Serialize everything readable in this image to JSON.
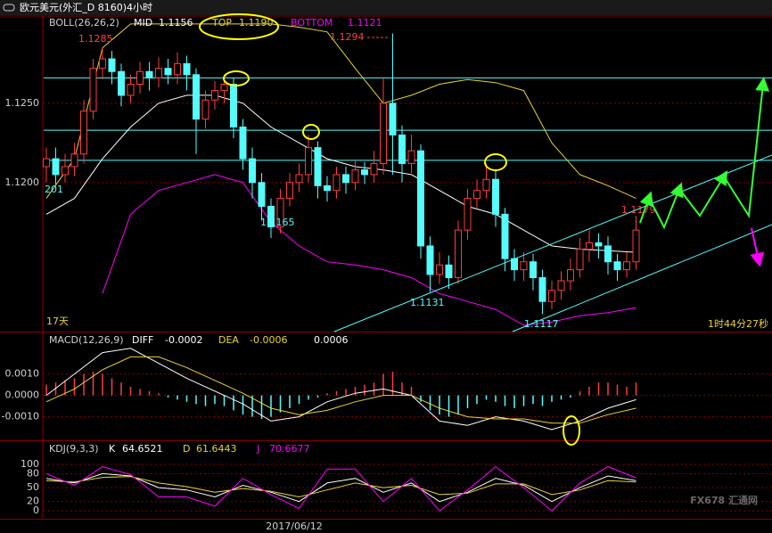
{
  "header": {
    "title": "欧元美元(外汇_D 8160)4小时"
  },
  "chart_data": [
    {
      "type": "candlestick",
      "title": "BOLL(26,26,2)",
      "open": [
        1.121,
        1.1215,
        1.1205,
        1.121,
        1.1218,
        1.1245,
        1.1272,
        1.1278,
        1.127,
        1.1255,
        1.1262,
        1.127,
        1.1266,
        1.1272,
        1.1268,
        1.1275,
        1.1268,
        1.124,
        1.1252,
        1.1258,
        1.1262,
        1.1235,
        1.1215,
        1.12,
        1.1185,
        1.1172,
        1.119,
        1.12,
        1.1205,
        1.1222,
        1.1198,
        1.1195,
        1.1205,
        1.12,
        1.1208,
        1.1205,
        1.1212,
        1.125,
        1.123,
        1.1212,
        1.122,
        1.116,
        1.1142,
        1.1148,
        1.114,
        1.117,
        1.119,
        1.1195,
        1.1202,
        1.118,
        1.1152,
        1.1145,
        1.115,
        1.114,
        1.1125,
        1.1132,
        1.1138,
        1.1145,
        1.1158,
        1.1162,
        1.116,
        1.115,
        1.1145,
        1.115
      ],
      "high": [
        1.1222,
        1.1222,
        1.1218,
        1.1225,
        1.1252,
        1.1278,
        1.1285,
        1.1283,
        1.1275,
        1.1268,
        1.1276,
        1.1276,
        1.1279,
        1.1278,
        1.1282,
        1.128,
        1.1272,
        1.1258,
        1.1264,
        1.1268,
        1.1266,
        1.124,
        1.1222,
        1.1206,
        1.119,
        1.1196,
        1.1206,
        1.1212,
        1.123,
        1.1226,
        1.1204,
        1.121,
        1.121,
        1.1214,
        1.1213,
        1.122,
        1.1266,
        1.1294,
        1.1236,
        1.123,
        1.1224,
        1.1166,
        1.1156,
        1.1154,
        1.1176,
        1.1196,
        1.1202,
        1.1212,
        1.1208,
        1.1184,
        1.1158,
        1.1156,
        1.1155,
        1.1145,
        1.1138,
        1.1144,
        1.1152,
        1.1165,
        1.117,
        1.1168,
        1.1166,
        1.1155,
        1.1156,
        1.1179
      ],
      "low": [
        1.12,
        1.1198,
        1.12,
        1.1204,
        1.1212,
        1.124,
        1.1265,
        1.1262,
        1.1248,
        1.125,
        1.1256,
        1.1258,
        1.126,
        1.1262,
        1.1262,
        1.1258,
        1.1218,
        1.1234,
        1.1246,
        1.125,
        1.1228,
        1.1208,
        1.119,
        1.1176,
        1.1165,
        1.1168,
        1.1185,
        1.1194,
        1.12,
        1.119,
        1.1188,
        1.119,
        1.1193,
        1.1195,
        1.1199,
        1.12,
        1.1205,
        1.1205,
        1.12,
        1.1206,
        1.1152,
        1.1131,
        1.1136,
        1.1133,
        1.1136,
        1.1164,
        1.1184,
        1.119,
        1.1172,
        1.1144,
        1.1138,
        1.1138,
        1.1132,
        1.1117,
        1.112,
        1.1126,
        1.1132,
        1.114,
        1.115,
        1.1152,
        1.1142,
        1.1138,
        1.114,
        1.1145
      ],
      "close": [
        1.1215,
        1.1205,
        1.121,
        1.1218,
        1.1245,
        1.1272,
        1.1278,
        1.127,
        1.1255,
        1.1262,
        1.127,
        1.1266,
        1.1272,
        1.1268,
        1.1275,
        1.1268,
        1.124,
        1.1252,
        1.1258,
        1.1262,
        1.1235,
        1.1215,
        1.12,
        1.1185,
        1.1172,
        1.119,
        1.12,
        1.1205,
        1.1222,
        1.1198,
        1.1195,
        1.1205,
        1.12,
        1.1208,
        1.1205,
        1.1212,
        1.125,
        1.123,
        1.1212,
        1.122,
        1.116,
        1.1142,
        1.1148,
        1.114,
        1.117,
        1.119,
        1.1195,
        1.1202,
        1.118,
        1.1152,
        1.1145,
        1.115,
        1.114,
        1.1125,
        1.1132,
        1.1138,
        1.1145,
        1.1158,
        1.1162,
        1.116,
        1.115,
        1.1145,
        1.115,
        1.117
      ],
      "up_color": "#ff3c3c",
      "down_color": "#54fcfc",
      "indicators": [
        {
          "name": "MID",
          "label": "1.1156",
          "color": "#ffffff",
          "values": [
            1.118,
            1.119,
            1.1215,
            1.1235,
            1.125,
            1.1255,
            1.1255,
            1.125,
            1.1235,
            1.1225,
            1.1215,
            1.121,
            1.1208,
            1.1205,
            1.1195,
            1.1185,
            1.118,
            1.117,
            1.116,
            1.1158,
            1.1157,
            1.1156
          ]
        },
        {
          "name": "TOP",
          "label": "1.1190",
          "color": "#e6d23c",
          "values": [
            1.119,
            1.1215,
            1.1285,
            1.13,
            1.13,
            1.13,
            1.13,
            1.13,
            1.13,
            1.1298,
            1.1295,
            1.1272,
            1.125,
            1.1255,
            1.1262,
            1.1265,
            1.1263,
            1.1258,
            1.1225,
            1.1205,
            1.1198,
            1.119
          ]
        },
        {
          "name": "BOTTOM",
          "label": "1.1121",
          "color": "#ff00ff",
          "values": [
            null,
            null,
            1.113,
            1.118,
            1.1195,
            1.12,
            1.1205,
            1.12,
            1.1175,
            1.116,
            1.115,
            1.1148,
            1.1145,
            1.114,
            1.113,
            1.1125,
            1.112,
            1.111,
            1.1112,
            1.1116,
            1.1118,
            1.1121
          ]
        }
      ],
      "ylim": [
        1.1106,
        1.1305
      ],
      "yticks": [
        {
          "value": 1.125,
          "label": "1.1250"
        },
        {
          "value": 1.12,
          "label": "1.1200"
        }
      ],
      "grid": true,
      "hlines": [
        1.1266,
        1.1233,
        1.1214
      ],
      "hline_color": "#54fcfc",
      "annotations": [
        "1.1285",
        "1.1294",
        "1.1165",
        "1.1131",
        "1.1117",
        "1.1179"
      ],
      "left_note": "201",
      "period_note": "17天",
      "timer": "1时44分27秒"
    },
    {
      "type": "macd",
      "title": "MACD(12,26,9)",
      "series": [
        {
          "name": "DIFF",
          "label": "-0.0002",
          "color": "#ffffff",
          "values": [
            0.0,
            0.001,
            0.002,
            0.0022,
            0.0015,
            0.0008,
            0.0002,
            -0.0004,
            -0.0012,
            -0.001,
            -0.0003,
            0.0001,
            0.0003,
            0.0,
            -0.0012,
            -0.0014,
            -0.001,
            -0.0012,
            -0.0016,
            -0.0012,
            -0.0006,
            -0.0002
          ]
        },
        {
          "name": "DEA",
          "label": "-0.0006",
          "color": "#e6d23c",
          "values": [
            -0.0003,
            0.0003,
            0.0012,
            0.0018,
            0.0018,
            0.0013,
            0.0007,
            0.0001,
            -0.0006,
            -0.0009,
            -0.0007,
            -0.0003,
            0.0,
            0.0,
            -0.0006,
            -0.001,
            -0.0011,
            -0.0011,
            -0.0013,
            -0.0013,
            -0.0009,
            -0.0006
          ]
        }
      ],
      "histogram": {
        "label": "0.0006",
        "values": [
          0.0005,
          0.0006,
          0.0007,
          0.0008,
          0.001,
          0.0011,
          0.001,
          0.0008,
          0.0006,
          0.0004,
          0.0003,
          0.0002,
          0.0001,
          -0.0001,
          -0.0002,
          -0.0003,
          -0.0004,
          -0.0005,
          -0.0004,
          -0.0005,
          -0.0007,
          -0.0009,
          -0.001,
          -0.0011,
          -0.001,
          -0.0008,
          -0.0006,
          -0.0004,
          -0.0002,
          -0.0001,
          0.0001,
          0.0002,
          0.0003,
          0.0004,
          0.0005,
          0.0006,
          0.001,
          0.0011,
          0.0006,
          0.0004,
          -0.0003,
          -0.0007,
          -0.0009,
          -0.001,
          -0.0009,
          -0.0006,
          -0.0004,
          -0.0002,
          -0.0003,
          -0.0005,
          -0.0006,
          -0.0005,
          -0.0004,
          -0.0005,
          -0.0003,
          -0.0002,
          -0.0001,
          0.0002,
          0.0004,
          0.0006,
          0.0006,
          0.0005,
          0.0004,
          0.0006
        ]
      },
      "ylim": [
        -0.0021,
        0.0029
      ],
      "yticks": [
        {
          "value": 0.001,
          "label": "0.0010"
        },
        {
          "value": 0,
          "label": "0.0000"
        },
        {
          "value": -0.001,
          "label": "-0.0010"
        }
      ],
      "grid": true
    },
    {
      "type": "kdj",
      "title": "KDJ(9,3,3)",
      "series": [
        {
          "name": "K",
          "label": "64.6521",
          "color": "#ffffff",
          "values": [
            70,
            60,
            80,
            75,
            50,
            45,
            30,
            55,
            40,
            20,
            60,
            70,
            40,
            60,
            20,
            40,
            70,
            55,
            20,
            50,
            75,
            65
          ]
        },
        {
          "name": "D",
          "label": "61.6443",
          "color": "#e6d23c",
          "values": [
            65,
            62,
            72,
            74,
            60,
            52,
            40,
            48,
            42,
            30,
            45,
            60,
            50,
            55,
            35,
            38,
            58,
            58,
            35,
            45,
            65,
            62
          ]
        },
        {
          "name": "J",
          "label": "70.6677",
          "color": "#ff00ff",
          "values": [
            80,
            55,
            95,
            78,
            30,
            30,
            10,
            70,
            35,
            5,
            90,
            90,
            20,
            70,
            0,
            45,
            95,
            50,
            0,
            60,
            95,
            71
          ]
        }
      ],
      "ylim": [
        -17,
        148
      ],
      "yticks": [
        100,
        80,
        50,
        20,
        0
      ],
      "grid": true,
      "date_label": "2017/06/12"
    }
  ],
  "watermark": "FX678 汇通网"
}
